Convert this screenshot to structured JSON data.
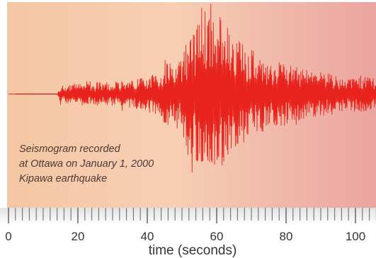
{
  "chart_data": {
    "type": "line",
    "title": "",
    "annotation_lines": [
      "Seismogram recorded",
      "at Ottawa on January 1, 2000",
      "Kipawa earthquake"
    ],
    "xlabel": "time (seconds)",
    "ylabel": "",
    "xlim": [
      0,
      108
    ],
    "ylim": [
      -1,
      1
    ],
    "x_ticks": [
      0,
      20,
      40,
      60,
      80,
      100
    ],
    "x_minor_tick_step": 2,
    "grid": false,
    "legend": "none",
    "series": [
      {
        "envelope_x": [
          0,
          14,
          15,
          18,
          24,
          30,
          36,
          40,
          44,
          46,
          48,
          50,
          52,
          54,
          56,
          58,
          60,
          62,
          64,
          66,
          68,
          70,
          72,
          76,
          80,
          86,
          92,
          98,
          104,
          108
        ],
        "envelope_y": [
          0.0,
          0.0,
          0.1,
          0.12,
          0.13,
          0.15,
          0.17,
          0.21,
          0.29,
          0.42,
          0.32,
          0.45,
          0.72,
          0.8,
          0.95,
          1.0,
          0.96,
          0.88,
          0.72,
          0.65,
          0.6,
          0.55,
          0.48,
          0.4,
          0.36,
          0.3,
          0.25,
          0.22,
          0.2,
          0.18
        ]
      }
    ]
  },
  "colors": {
    "background_left": "#f5c6a3",
    "background_mid": "#f6cfb4",
    "background_right": "#eba4a0",
    "trace": "#e8221c",
    "trace_quiet": "#c0392b",
    "axis_text": "#333333",
    "tick_marks": "#6f6f6f"
  }
}
